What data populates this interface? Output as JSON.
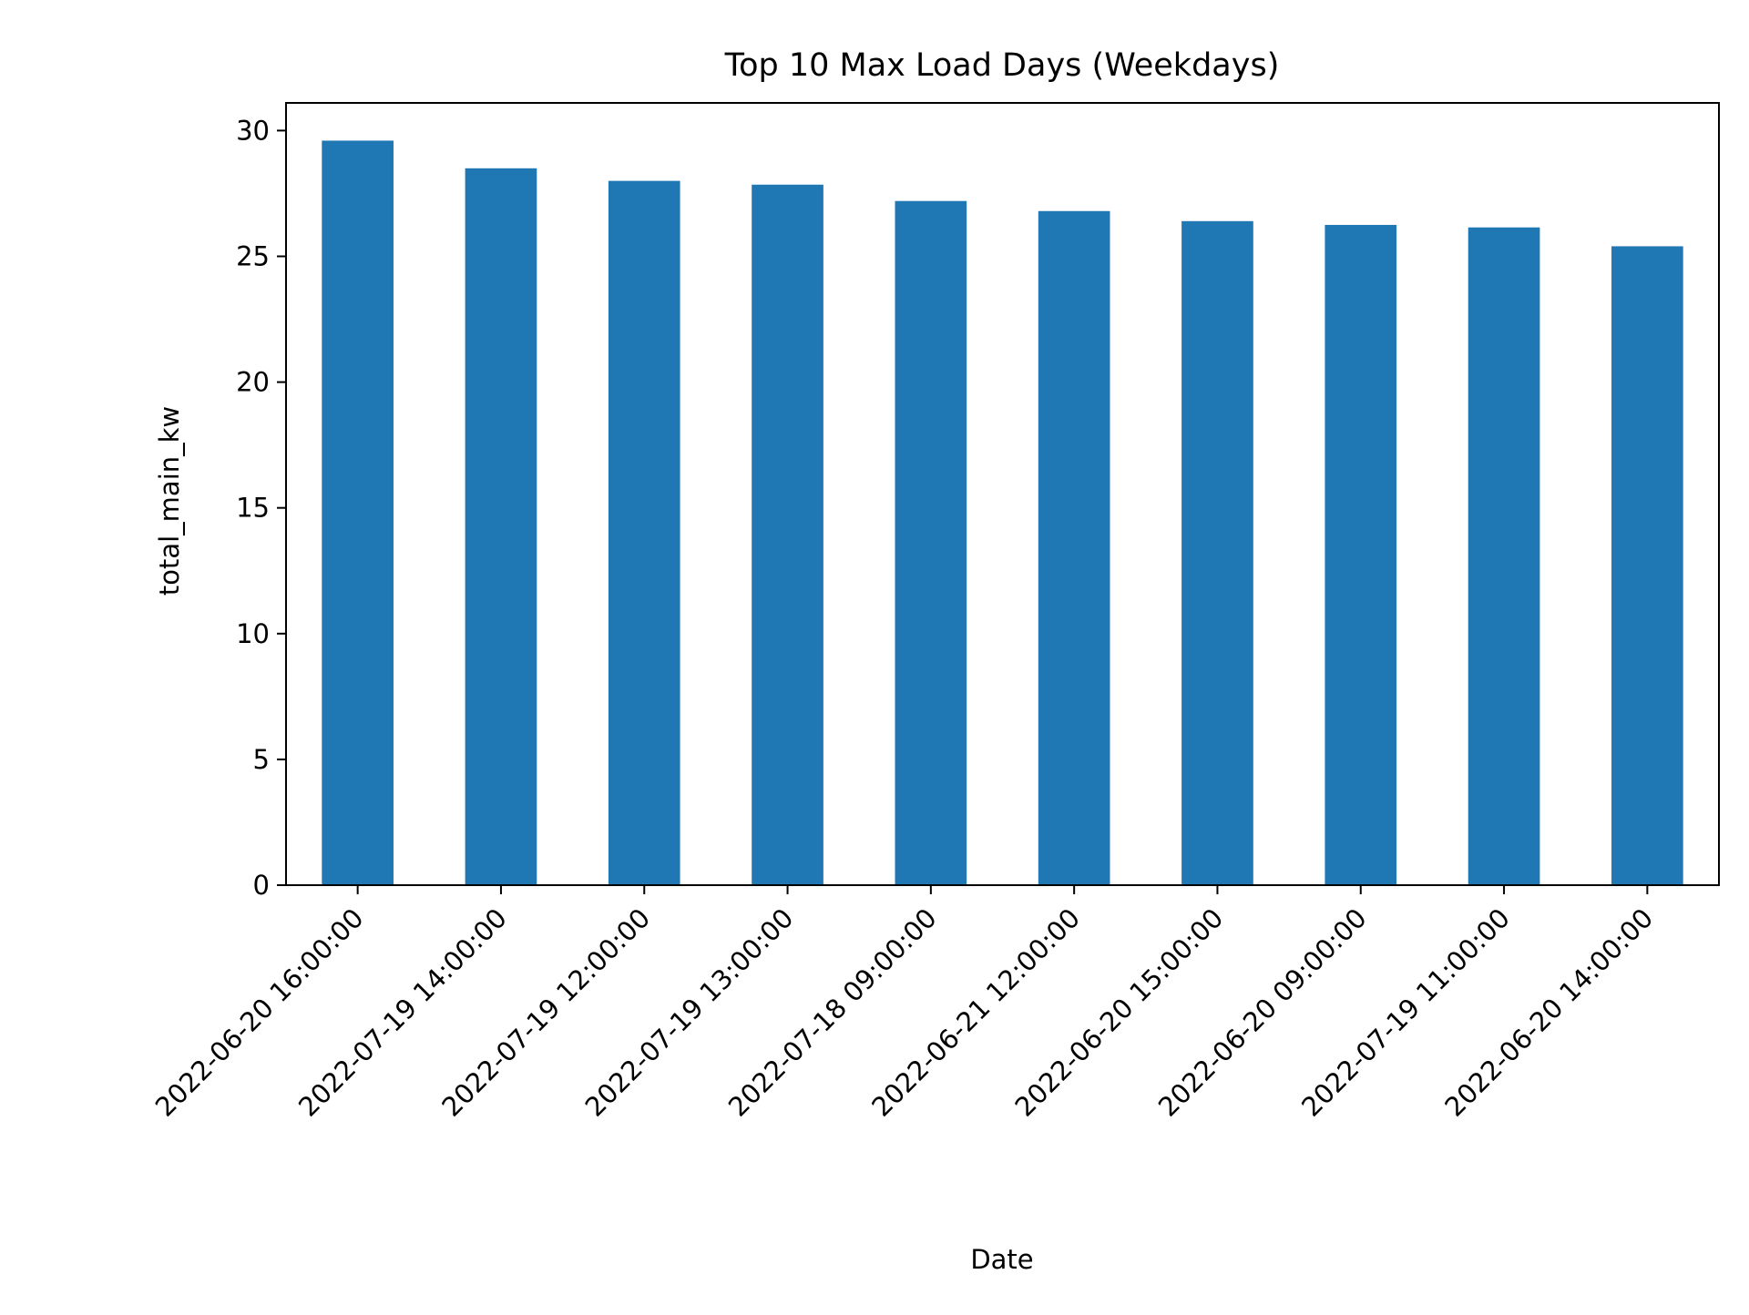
{
  "chart_data": {
    "type": "bar",
    "title": "Top 10 Max Load Days (Weekdays)",
    "xlabel": "Date",
    "ylabel": "total_main_kw",
    "categories": [
      "2022-06-20 16:00:00",
      "2022-07-19 14:00:00",
      "2022-07-19 12:00:00",
      "2022-07-19 13:00:00",
      "2022-07-18 09:00:00",
      "2022-06-21 12:00:00",
      "2022-06-20 15:00:00",
      "2022-06-20 09:00:00",
      "2022-07-19 11:00:00",
      "2022-06-20 14:00:00"
    ],
    "values": [
      29.6,
      28.5,
      28.0,
      27.85,
      27.2,
      26.8,
      26.4,
      26.25,
      26.15,
      25.4
    ],
    "ylim": [
      0,
      31.1
    ],
    "yticks": [
      0,
      5,
      10,
      15,
      20,
      25,
      30
    ],
    "bar_color": "#1f77b4",
    "grid": false,
    "legend": "none"
  }
}
